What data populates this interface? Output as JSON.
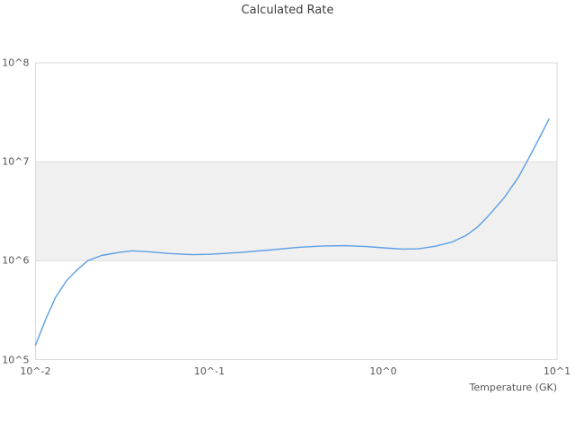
{
  "title": "Calculated Rate",
  "chart_data": {
    "type": "line",
    "title": "Calculated Rate",
    "xlabel": "Temperature (GK)",
    "ylabel": "",
    "x_scale": "log",
    "y_scale": "log",
    "xlim": [
      0.01,
      10
    ],
    "ylim": [
      100000,
      100000000
    ],
    "grid": "horizontal gridlines at each decade; no vertical gridlines; full light-gray plot border",
    "legend_position": "none",
    "x_ticks": [
      {
        "value": 0.01,
        "label": "10^-2"
      },
      {
        "value": 0.1,
        "label": "10^-1"
      },
      {
        "value": 1,
        "label": "10^0"
      },
      {
        "value": 10,
        "label": "10^1"
      }
    ],
    "y_ticks": [
      {
        "value": 100000,
        "label": "10^5"
      },
      {
        "value": 1000000,
        "label": "10^6"
      },
      {
        "value": 10000000,
        "label": "10^7"
      },
      {
        "value": 100000000,
        "label": "10^8"
      }
    ],
    "shaded_band": {
      "y_from": 1000000,
      "y_to": 10000000,
      "color": "#f0f0f0"
    },
    "series": [
      {
        "name": "Calculated Rate",
        "color": "#5b9fe4",
        "points": [
          [
            0.01,
            140000.0
          ],
          [
            0.0115,
            260000.0
          ],
          [
            0.013,
            420000.0
          ],
          [
            0.015,
            620000.0
          ],
          [
            0.017,
            780000.0
          ],
          [
            0.02,
            1000000.0
          ],
          [
            0.024,
            1130000.0
          ],
          [
            0.03,
            1210000.0
          ],
          [
            0.036,
            1260000.0
          ],
          [
            0.045,
            1230000.0
          ],
          [
            0.06,
            1180000.0
          ],
          [
            0.08,
            1150000.0
          ],
          [
            0.1,
            1160000.0
          ],
          [
            0.15,
            1210000.0
          ],
          [
            0.22,
            1280000.0
          ],
          [
            0.32,
            1360000.0
          ],
          [
            0.45,
            1410000.0
          ],
          [
            0.6,
            1420000.0
          ],
          [
            0.8,
            1390000.0
          ],
          [
            1.0,
            1350000.0
          ],
          [
            1.3,
            1310000.0
          ],
          [
            1.6,
            1320000.0
          ],
          [
            2.0,
            1400000.0
          ],
          [
            2.5,
            1550000.0
          ],
          [
            3.0,
            1800000.0
          ],
          [
            3.5,
            2200000.0
          ],
          [
            4.0,
            2800000.0
          ],
          [
            5.0,
            4400000.0
          ],
          [
            6.0,
            7000000.0
          ],
          [
            7.0,
            11500000.0
          ],
          [
            8.0,
            18000000.0
          ],
          [
            9.0,
            27000000.0
          ]
        ]
      }
    ]
  },
  "colors": {
    "background": "#ffffff",
    "band_fill": "#f0f0f0",
    "grid": "#dcdcdc",
    "border": "#d9d9d9",
    "tick_text": "#555555",
    "title_text": "#3d3d3d",
    "line": "#5b9fe4"
  }
}
